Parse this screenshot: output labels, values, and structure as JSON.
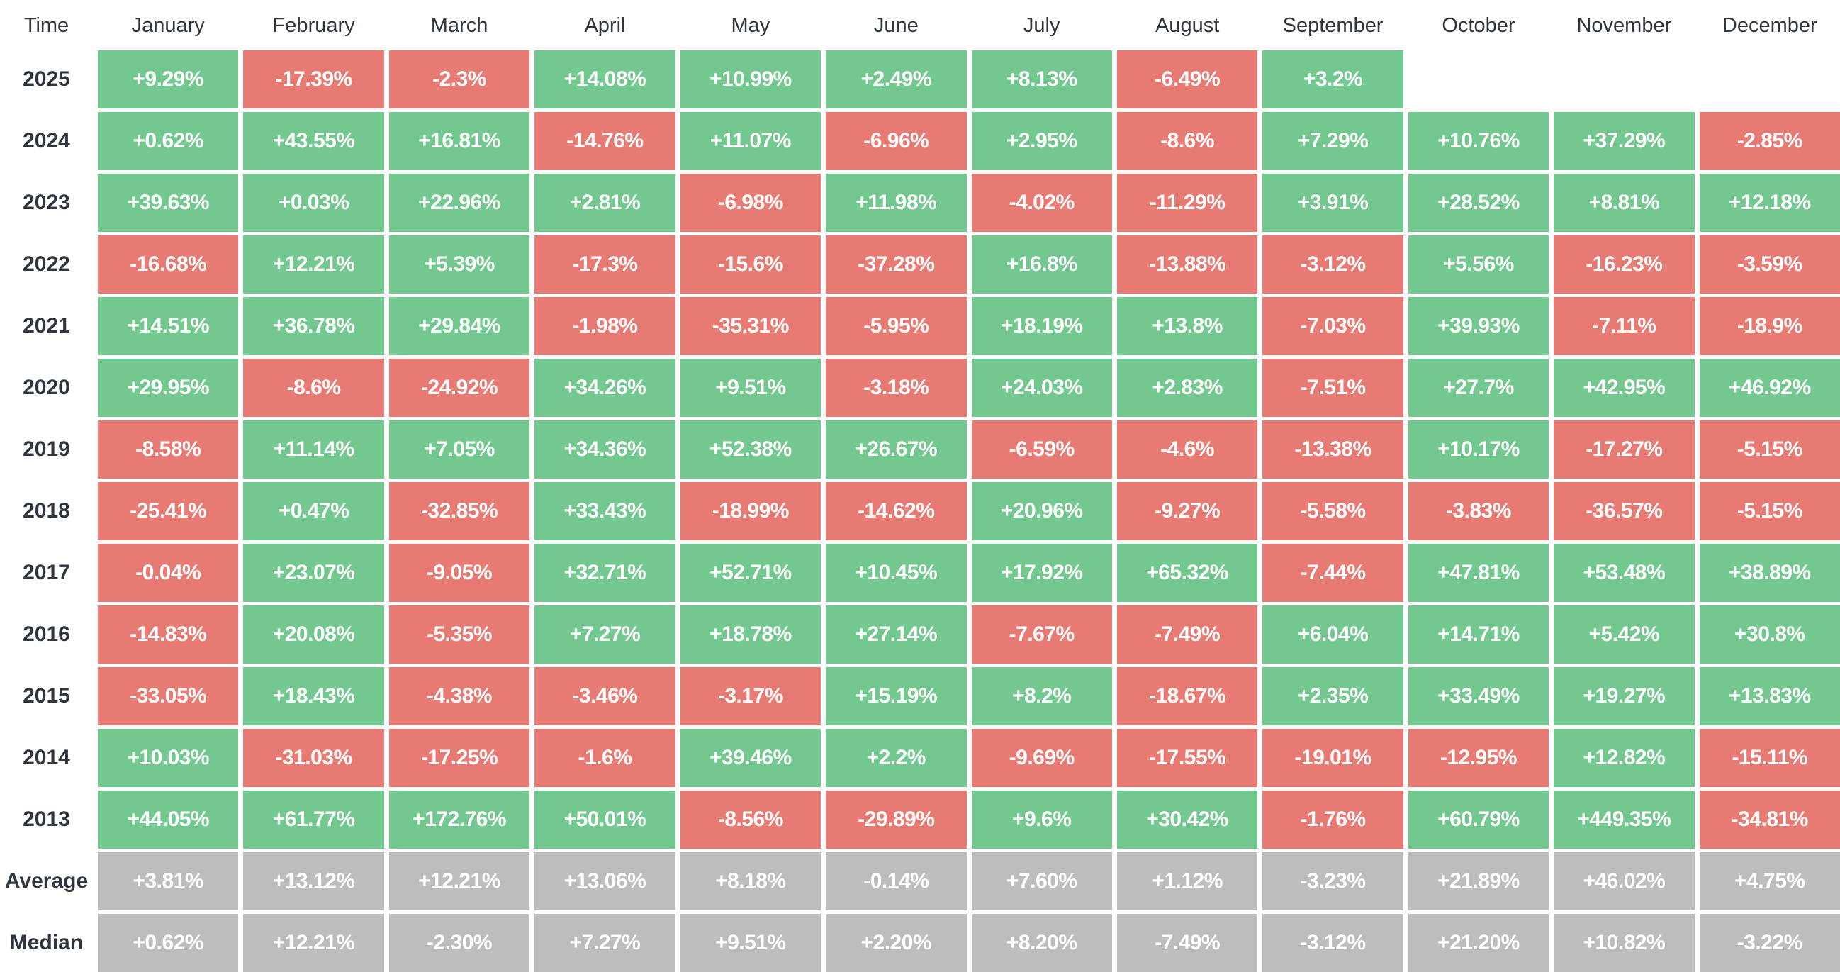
{
  "chart_data": {
    "type": "heatmap",
    "corner_label": "Time",
    "columns": [
      "January",
      "February",
      "March",
      "April",
      "May",
      "June",
      "July",
      "August",
      "September",
      "October",
      "November",
      "December"
    ],
    "rows": [
      {
        "label": "2025",
        "kind": "year",
        "cells": [
          "+9.29%",
          "-17.39%",
          "-2.3%",
          "+14.08%",
          "+10.99%",
          "+2.49%",
          "+8.13%",
          "-6.49%",
          "+3.2%",
          "",
          "",
          ""
        ]
      },
      {
        "label": "2024",
        "kind": "year",
        "cells": [
          "+0.62%",
          "+43.55%",
          "+16.81%",
          "-14.76%",
          "+11.07%",
          "-6.96%",
          "+2.95%",
          "-8.6%",
          "+7.29%",
          "+10.76%",
          "+37.29%",
          "-2.85%"
        ]
      },
      {
        "label": "2023",
        "kind": "year",
        "cells": [
          "+39.63%",
          "+0.03%",
          "+22.96%",
          "+2.81%",
          "-6.98%",
          "+11.98%",
          "-4.02%",
          "-11.29%",
          "+3.91%",
          "+28.52%",
          "+8.81%",
          "+12.18%"
        ]
      },
      {
        "label": "2022",
        "kind": "year",
        "cells": [
          "-16.68%",
          "+12.21%",
          "+5.39%",
          "-17.3%",
          "-15.6%",
          "-37.28%",
          "+16.8%",
          "-13.88%",
          "-3.12%",
          "+5.56%",
          "-16.23%",
          "-3.59%"
        ]
      },
      {
        "label": "2021",
        "kind": "year",
        "cells": [
          "+14.51%",
          "+36.78%",
          "+29.84%",
          "-1.98%",
          "-35.31%",
          "-5.95%",
          "+18.19%",
          "+13.8%",
          "-7.03%",
          "+39.93%",
          "-7.11%",
          "-18.9%"
        ]
      },
      {
        "label": "2020",
        "kind": "year",
        "cells": [
          "+29.95%",
          "-8.6%",
          "-24.92%",
          "+34.26%",
          "+9.51%",
          "-3.18%",
          "+24.03%",
          "+2.83%",
          "-7.51%",
          "+27.7%",
          "+42.95%",
          "+46.92%"
        ]
      },
      {
        "label": "2019",
        "kind": "year",
        "cells": [
          "-8.58%",
          "+11.14%",
          "+7.05%",
          "+34.36%",
          "+52.38%",
          "+26.67%",
          "-6.59%",
          "-4.6%",
          "-13.38%",
          "+10.17%",
          "-17.27%",
          "-5.15%"
        ]
      },
      {
        "label": "2018",
        "kind": "year",
        "cells": [
          "-25.41%",
          "+0.47%",
          "-32.85%",
          "+33.43%",
          "-18.99%",
          "-14.62%",
          "+20.96%",
          "-9.27%",
          "-5.58%",
          "-3.83%",
          "-36.57%",
          "-5.15%"
        ]
      },
      {
        "label": "2017",
        "kind": "year",
        "cells": [
          "-0.04%",
          "+23.07%",
          "-9.05%",
          "+32.71%",
          "+52.71%",
          "+10.45%",
          "+17.92%",
          "+65.32%",
          "-7.44%",
          "+47.81%",
          "+53.48%",
          "+38.89%"
        ]
      },
      {
        "label": "2016",
        "kind": "year",
        "cells": [
          "-14.83%",
          "+20.08%",
          "-5.35%",
          "+7.27%",
          "+18.78%",
          "+27.14%",
          "-7.67%",
          "-7.49%",
          "+6.04%",
          "+14.71%",
          "+5.42%",
          "+30.8%"
        ]
      },
      {
        "label": "2015",
        "kind": "year",
        "cells": [
          "-33.05%",
          "+18.43%",
          "-4.38%",
          "-3.46%",
          "-3.17%",
          "+15.19%",
          "+8.2%",
          "-18.67%",
          "+2.35%",
          "+33.49%",
          "+19.27%",
          "+13.83%"
        ]
      },
      {
        "label": "2014",
        "kind": "year",
        "cells": [
          "+10.03%",
          "-31.03%",
          "-17.25%",
          "-1.6%",
          "+39.46%",
          "+2.2%",
          "-9.69%",
          "-17.55%",
          "-19.01%",
          "-12.95%",
          "+12.82%",
          "-15.11%"
        ]
      },
      {
        "label": "2013",
        "kind": "year",
        "cells": [
          "+44.05%",
          "+61.77%",
          "+172.76%",
          "+50.01%",
          "-8.56%",
          "-29.89%",
          "+9.6%",
          "+30.42%",
          "-1.76%",
          "+60.79%",
          "+449.35%",
          "-34.81%"
        ]
      },
      {
        "label": "Average",
        "kind": "summary",
        "cells": [
          "+3.81%",
          "+13.12%",
          "+12.21%",
          "+13.06%",
          "+8.18%",
          "-0.14%",
          "+7.60%",
          "+1.12%",
          "-3.23%",
          "+21.89%",
          "+46.02%",
          "+4.75%"
        ]
      },
      {
        "label": "Median",
        "kind": "summary",
        "cells": [
          "+0.62%",
          "+12.21%",
          "-2.30%",
          "+7.27%",
          "+9.51%",
          "+2.20%",
          "+8.20%",
          "-7.49%",
          "-3.12%",
          "+21.20%",
          "+10.82%",
          "-3.22%"
        ]
      }
    ],
    "colors": {
      "positive": "#73C890",
      "negative": "#E87A74",
      "summary": "#BDBDBD",
      "header_text": "#2F353E",
      "cell_text": "#FFFFFF",
      "background": "#FFFFFF"
    },
    "layout": {
      "grid": "off",
      "legend": "none",
      "value_format": "signed percent"
    }
  }
}
